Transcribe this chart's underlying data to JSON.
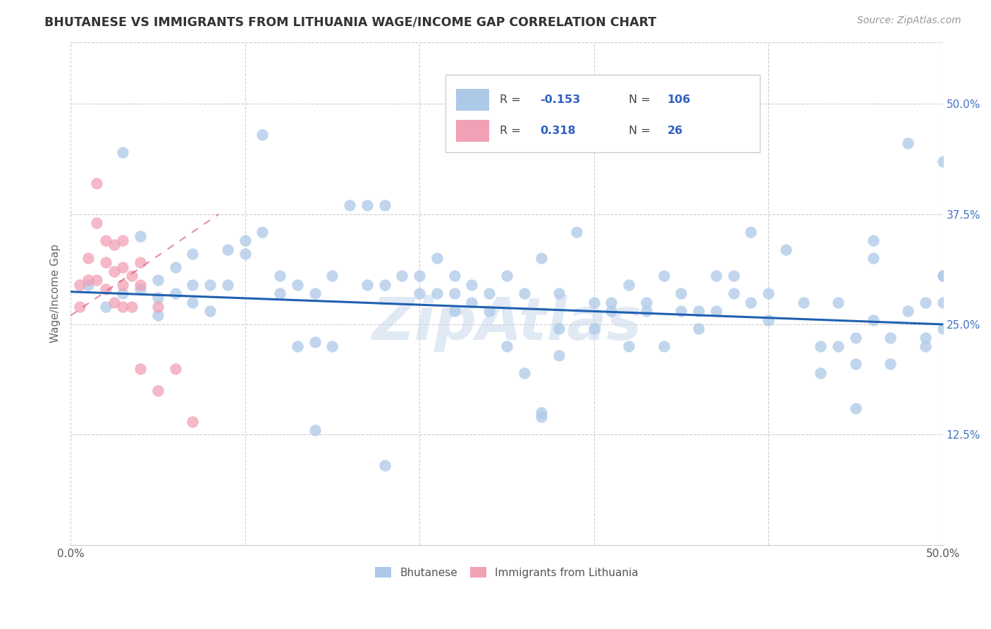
{
  "title": "BHUTANESE VS IMMIGRANTS FROM LITHUANIA WAGE/INCOME GAP CORRELATION CHART",
  "source": "Source: ZipAtlas.com",
  "ylabel": "Wage/Income Gap",
  "x_min": 0.0,
  "x_max": 0.5,
  "y_min": 0.0,
  "y_max": 0.57,
  "y_ticks_right": [
    0.5,
    0.375,
    0.25,
    0.125
  ],
  "y_tick_labels_right": [
    "50.0%",
    "37.5%",
    "25.0%",
    "12.5%"
  ],
  "blue_R": -0.153,
  "blue_N": 106,
  "pink_R": 0.318,
  "pink_N": 26,
  "blue_color": "#adc9e8",
  "pink_color": "#f2a0b5",
  "blue_line_color": "#2060b0",
  "pink_line_color": "#d04070",
  "watermark": "ZipAtlas",
  "watermark_color": "#c8d8ec",
  "legend_box_blue": "#adc9e8",
  "legend_box_pink": "#f2a0b5",
  "blue_x": [
    0.01,
    0.02,
    0.03,
    0.03,
    0.04,
    0.04,
    0.05,
    0.05,
    0.05,
    0.06,
    0.06,
    0.07,
    0.07,
    0.07,
    0.08,
    0.08,
    0.09,
    0.09,
    0.1,
    0.1,
    0.11,
    0.12,
    0.12,
    0.13,
    0.13,
    0.14,
    0.14,
    0.15,
    0.15,
    0.16,
    0.17,
    0.17,
    0.18,
    0.18,
    0.19,
    0.2,
    0.2,
    0.21,
    0.21,
    0.22,
    0.22,
    0.22,
    0.23,
    0.23,
    0.24,
    0.24,
    0.25,
    0.25,
    0.26,
    0.26,
    0.27,
    0.27,
    0.28,
    0.28,
    0.28,
    0.29,
    0.3,
    0.3,
    0.31,
    0.31,
    0.32,
    0.32,
    0.33,
    0.33,
    0.34,
    0.34,
    0.35,
    0.35,
    0.36,
    0.36,
    0.37,
    0.37,
    0.38,
    0.38,
    0.39,
    0.39,
    0.4,
    0.4,
    0.41,
    0.42,
    0.43,
    0.43,
    0.44,
    0.44,
    0.45,
    0.45,
    0.46,
    0.46,
    0.47,
    0.47,
    0.48,
    0.48,
    0.49,
    0.49,
    0.49,
    0.5,
    0.5,
    0.5,
    0.5,
    0.5,
    0.11,
    0.14,
    0.18,
    0.27,
    0.45,
    0.46
  ],
  "blue_y": [
    0.295,
    0.27,
    0.445,
    0.285,
    0.35,
    0.29,
    0.3,
    0.28,
    0.26,
    0.315,
    0.285,
    0.33,
    0.295,
    0.275,
    0.295,
    0.265,
    0.335,
    0.295,
    0.345,
    0.33,
    0.355,
    0.305,
    0.285,
    0.225,
    0.295,
    0.285,
    0.23,
    0.305,
    0.225,
    0.385,
    0.385,
    0.295,
    0.385,
    0.295,
    0.305,
    0.305,
    0.285,
    0.325,
    0.285,
    0.305,
    0.285,
    0.265,
    0.295,
    0.275,
    0.285,
    0.265,
    0.225,
    0.305,
    0.195,
    0.285,
    0.15,
    0.325,
    0.285,
    0.245,
    0.215,
    0.355,
    0.275,
    0.245,
    0.275,
    0.265,
    0.225,
    0.295,
    0.275,
    0.265,
    0.225,
    0.305,
    0.265,
    0.285,
    0.265,
    0.245,
    0.305,
    0.265,
    0.285,
    0.305,
    0.275,
    0.355,
    0.255,
    0.285,
    0.335,
    0.275,
    0.225,
    0.195,
    0.275,
    0.225,
    0.235,
    0.205,
    0.345,
    0.255,
    0.235,
    0.205,
    0.455,
    0.265,
    0.235,
    0.275,
    0.225,
    0.435,
    0.305,
    0.275,
    0.245,
    0.305,
    0.465,
    0.13,
    0.09,
    0.145,
    0.155,
    0.325
  ],
  "pink_x": [
    0.005,
    0.005,
    0.01,
    0.01,
    0.015,
    0.015,
    0.015,
    0.02,
    0.02,
    0.02,
    0.025,
    0.025,
    0.025,
    0.03,
    0.03,
    0.03,
    0.03,
    0.035,
    0.035,
    0.04,
    0.04,
    0.04,
    0.05,
    0.05,
    0.06,
    0.07
  ],
  "pink_y": [
    0.295,
    0.27,
    0.325,
    0.3,
    0.41,
    0.365,
    0.3,
    0.345,
    0.32,
    0.29,
    0.34,
    0.31,
    0.275,
    0.345,
    0.315,
    0.295,
    0.27,
    0.305,
    0.27,
    0.32,
    0.295,
    0.2,
    0.27,
    0.175,
    0.2,
    0.14
  ],
  "blue_trend_x": [
    0.0,
    0.5
  ],
  "blue_trend_y": [
    0.287,
    0.25
  ],
  "pink_trend_x": [
    0.0,
    0.085
  ],
  "pink_trend_y": [
    0.26,
    0.375
  ]
}
